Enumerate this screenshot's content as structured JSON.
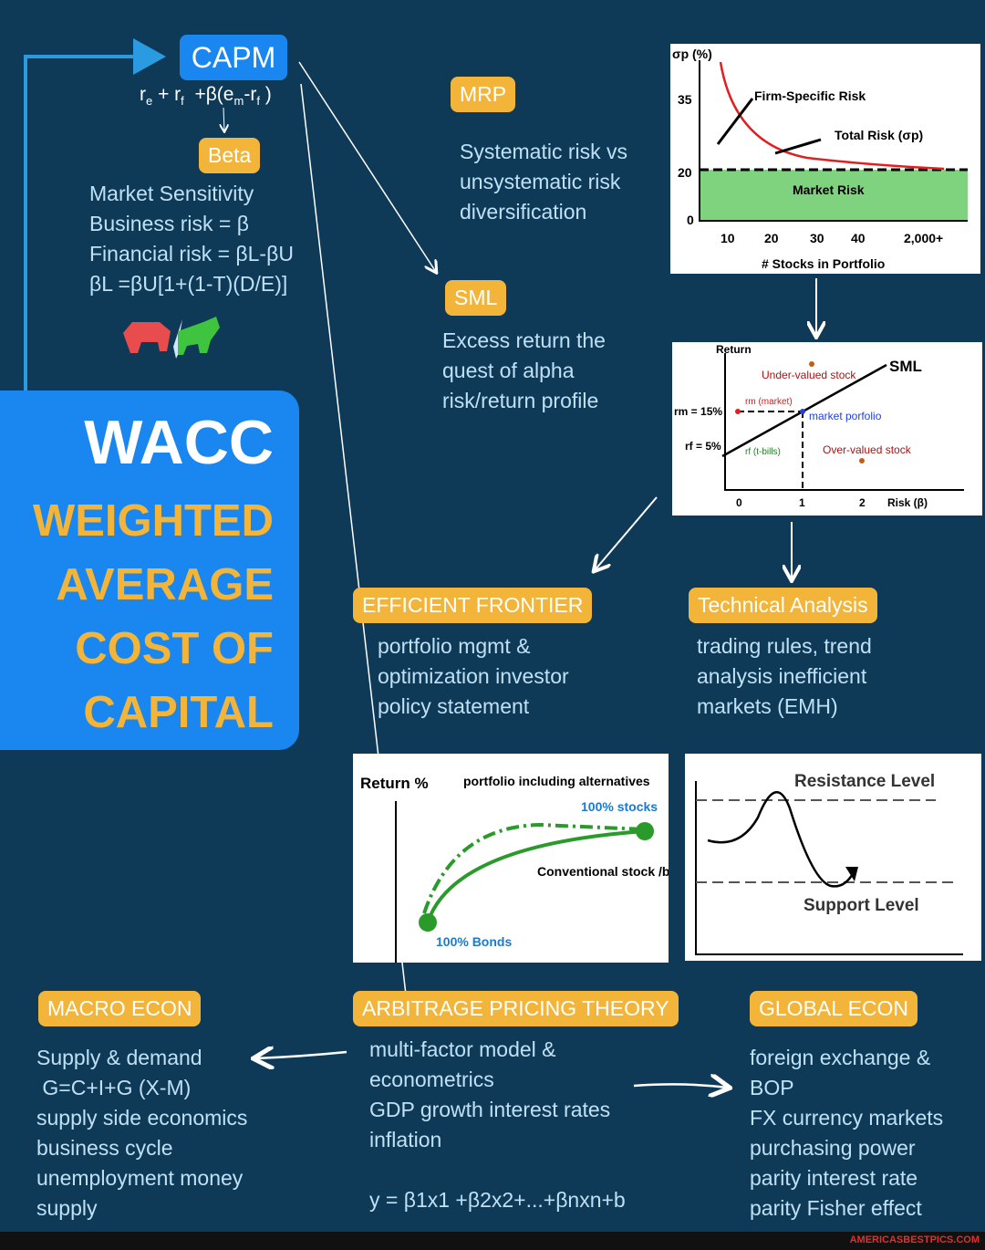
{
  "capm": {
    "label": "CAPM",
    "formula": [
      "r",
      "e",
      " + r",
      "f",
      "  +β(e",
      "m",
      "-r",
      "f",
      " )"
    ]
  },
  "beta": {
    "label": "Beta",
    "lines": [
      "Market Sensitivity",
      "Business risk = β",
      "Financial risk = βL-βU",
      "βL =βU[1+(1-T)(D/E)]"
    ]
  },
  "wacc": {
    "title": "WACC",
    "subtitle": [
      "WEIGHTED",
      "AVERAGE",
      "COST OF",
      "CAPITAL"
    ]
  },
  "mrp": {
    "label": "MRP",
    "lines": [
      "Systematic risk vs",
      "unsystematic risk",
      "diversification"
    ]
  },
  "sml": {
    "label": "SML",
    "lines": [
      "Excess return the",
      "quest of alpha",
      "risk/return profile"
    ]
  },
  "efficient_frontier": {
    "label": "EFFICIENT FRONTIER",
    "lines": [
      "portfolio mgmt &",
      "optimization investor",
      "policy statement"
    ]
  },
  "technical_analysis": {
    "label": "Technical Analysis",
    "lines": [
      "trading rules, trend",
      "analysis inefficient",
      "markets (EMH)"
    ]
  },
  "macro_econ": {
    "label": "MACRO ECON",
    "lines": [
      "Supply & demand",
      " G=C+I+G (X-M)",
      "supply side economics",
      "business cycle",
      "unemployment money",
      "supply"
    ]
  },
  "apt": {
    "label": "ARBITRAGE PRICING THEORY",
    "lines": [
      "multi-factor model &",
      "econometrics",
      "GDP growth interest rates",
      "inflation"
    ],
    "formula": "y = β1x1 +β2x2+...+βnxn+b"
  },
  "global_econ": {
    "label": "GLOBAL ECON",
    "lines": [
      "foreign exchange &",
      "BOP",
      "FX currency markets",
      "purchasing power",
      "parity interest rate",
      "parity Fisher effect"
    ]
  },
  "diversification_chart": {
    "y_label": "σp (%)",
    "yticks": [
      "35",
      "20",
      "0"
    ],
    "xticks": [
      "10",
      "20",
      "30",
      "40",
      "2,000+"
    ],
    "x_label": "# Stocks in Portfolio",
    "firm_specific": "Firm-Specific Risk",
    "total_risk": "Total Risk (σp)",
    "market_risk": "Market Risk"
  },
  "sml_chart": {
    "y_label": "Return",
    "line_label": "SML",
    "under": "Under-valued stock",
    "rm_point": "rm (market)",
    "rm": "rm = 15%",
    "market": "market porfolio",
    "rf": "rf = 5%",
    "rf_point": "rf (t-bills)",
    "over": "Over-valued stock",
    "xticks": [
      "0",
      "1",
      "2"
    ],
    "x_label": "Risk (β)"
  },
  "frontier_chart": {
    "y_label": "Return %",
    "alternatives": "portfolio including alternatives",
    "stocks": "100% stocks",
    "conventional": "Conventional stock /bond portfolio",
    "bonds": "100% Bonds"
  },
  "levels_chart": {
    "resistance": "Resistance Level",
    "support": "Support Level"
  },
  "footer": "AMERICASBESTPICS.COM"
}
